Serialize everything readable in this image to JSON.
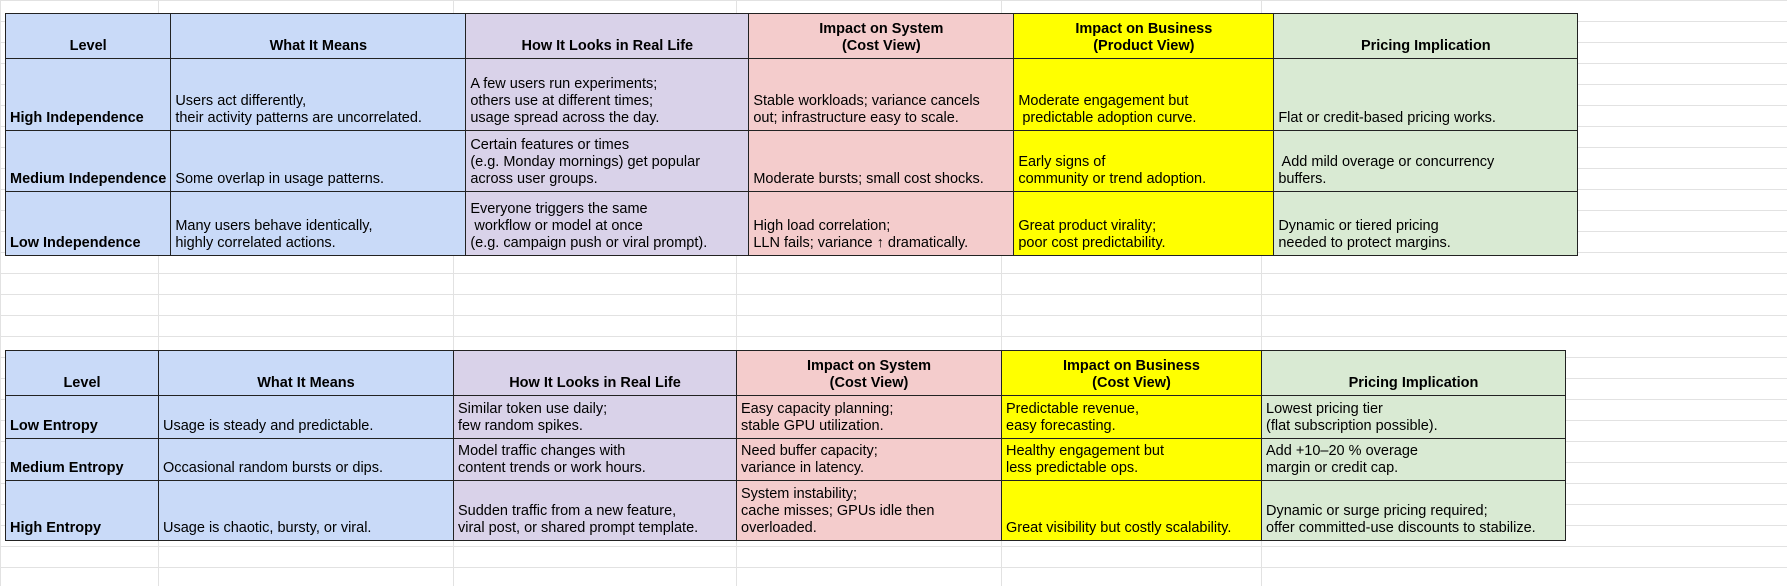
{
  "tables": [
    {
      "headers": [
        "Level",
        "What It Means",
        "How It Looks in Real Life",
        "Impact on System\n(Cost View)",
        "Impact on Business\n(Product View)",
        "Pricing Implication"
      ],
      "rows": [
        [
          "High Independence",
          "Users act differently,\ntheir activity patterns are uncorrelated.",
          "A few users run experiments;\nothers use at different times;\nusage spread across the day.",
          "Stable workloads; variance cancels\nout; infrastructure easy to scale.",
          "Moderate engagement but\n predictable adoption curve.",
          "Flat or credit-based pricing works."
        ],
        [
          "Medium Independence",
          "Some overlap in usage patterns.",
          "Certain features or times\n(e.g. Monday mornings) get popular\nacross user groups.",
          "Moderate bursts; small cost shocks.",
          "Early signs of\ncommunity or trend adoption.",
          " Add mild overage or concurrency\nbuffers."
        ],
        [
          "Low Independence",
          "Many users behave identically,\nhighly correlated actions.",
          "Everyone triggers the same\n workflow or model at once\n(e.g. campaign push or viral prompt).",
          "High load correlation;\nLLN fails; variance ↑ dramatically.",
          "Great product virality;\npoor cost predictability.",
          "Dynamic or tiered pricing\nneeded to protect margins."
        ]
      ]
    },
    {
      "headers": [
        "Level",
        "What It Means",
        "How It Looks in Real Life",
        "Impact on System\n(Cost View)",
        "Impact on Business\n(Cost View)",
        "Pricing Implication"
      ],
      "rows": [
        [
          "Low Entropy",
          "Usage is steady and predictable.",
          "Similar token use daily;\nfew random spikes.",
          "Easy capacity planning;\nstable GPU utilization.",
          "Predictable revenue,\neasy forecasting.",
          "Lowest pricing tier\n(flat subscription possible)."
        ],
        [
          "Medium Entropy",
          "Occasional random bursts or dips.",
          "Model traffic changes with\ncontent trends or work hours.",
          "Need buffer capacity;\nvariance in latency.",
          "Healthy engagement but\nless predictable ops.",
          "Add +10–20 % overage\nmargin or credit cap."
        ],
        [
          "High Entropy",
          "Usage is chaotic, bursty, or viral.",
          "Sudden traffic from a new feature,\nviral post, or shared prompt template.",
          "System instability;\ncache misses; GPUs idle then\noverloaded.",
          "Great visibility but costly scalability.",
          "Dynamic or surge pricing required;\noffer committed-use discounts to stabilize."
        ]
      ]
    }
  ]
}
